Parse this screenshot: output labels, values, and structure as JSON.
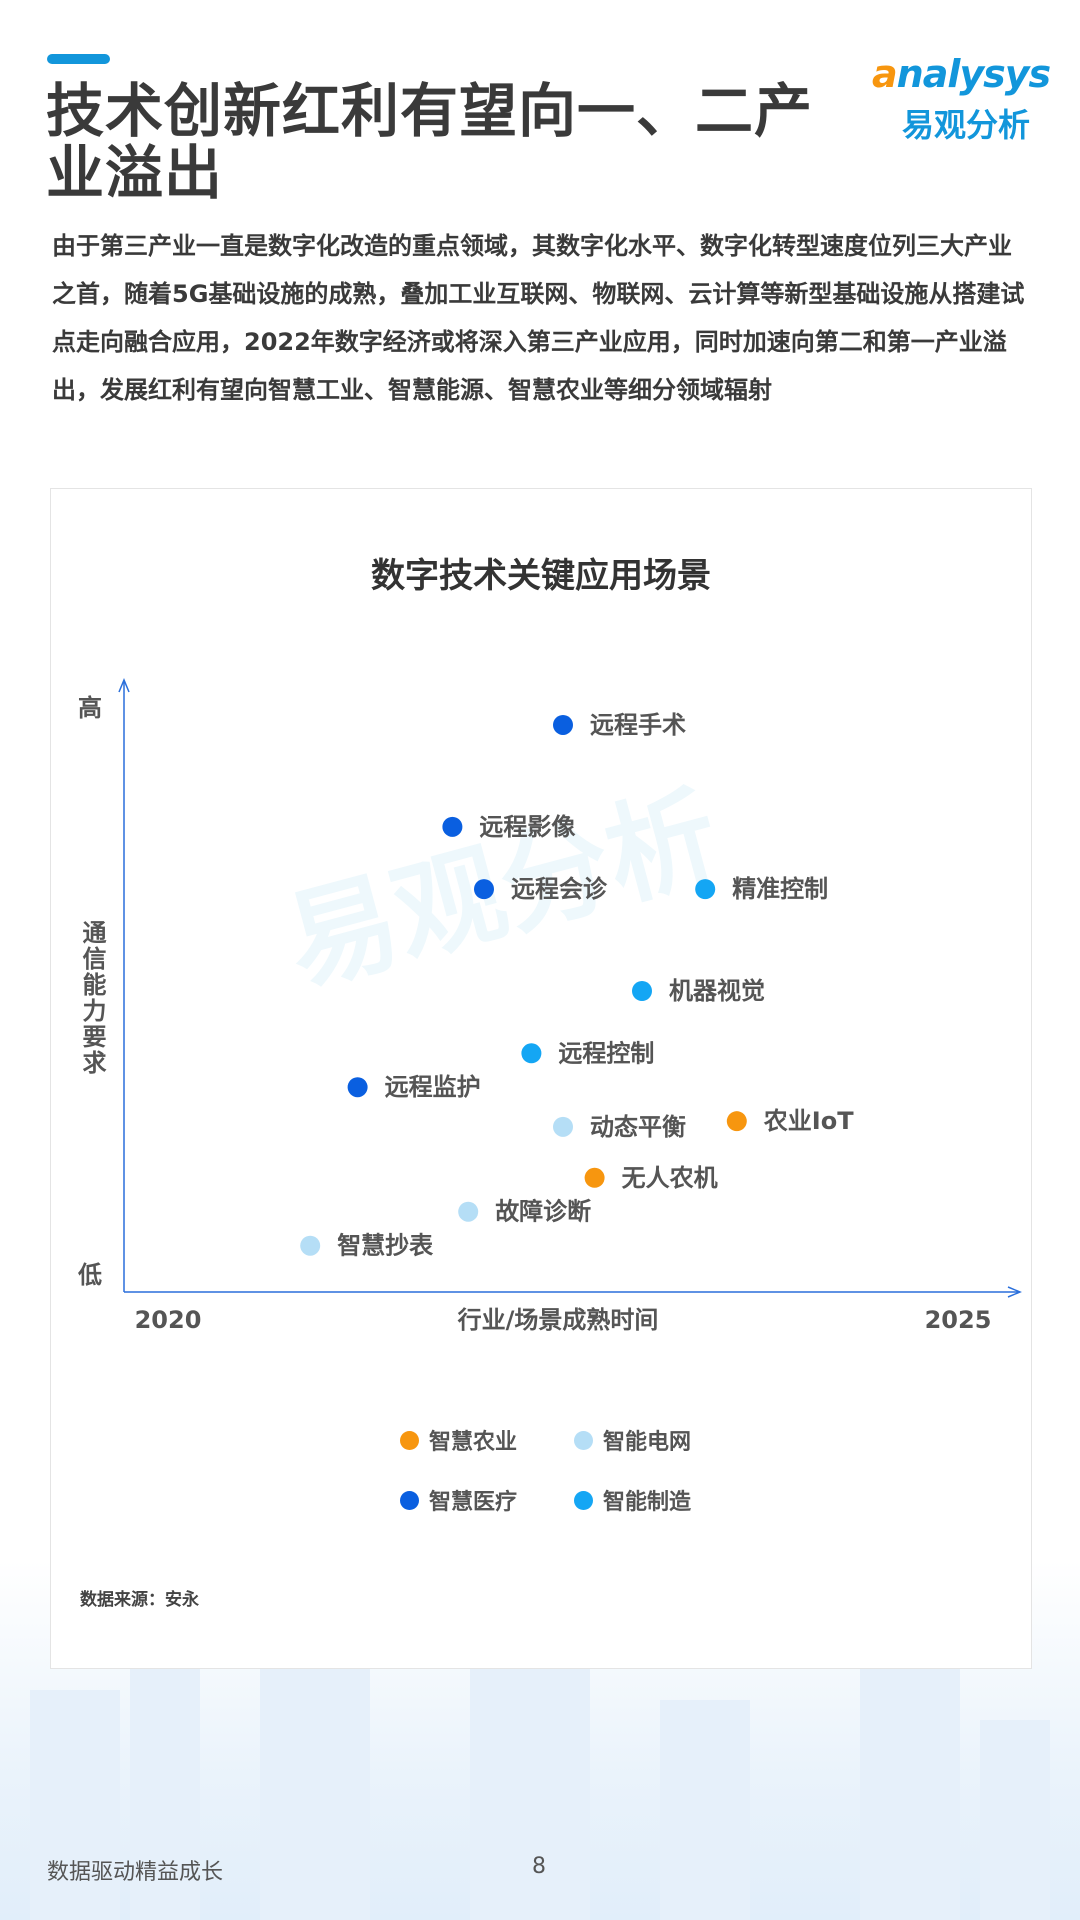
{
  "header": {
    "title": "技术创新红利有望向一、二产业溢出",
    "logo_en": "analysys",
    "logo_cn": "易观分析"
  },
  "body_text": "由于第三产业一直是数字化改造的重点领域，其数字化水平、数字化转型速度位列三大产业之首，随着5G基础设施的成熟，叠加工业互联网、物联网、云计算等新型基础设施从搭建试点走向融合应用，2022年数字经济或将深入第三产业应用，同时加速向第二和第一产业溢出，发展红利有望向智慧工业、智慧能源、智慧农业等细分领域辐射",
  "chart_data": {
    "type": "scatter",
    "title": "数字技术关键应用场景",
    "xlabel": "行业/场景成熟时间",
    "ylabel": "通信能力要求",
    "x_tick_labels": [
      "2020",
      "2025"
    ],
    "y_tick_labels": [
      "低",
      "高"
    ],
    "xlim": [
      2020,
      2025
    ],
    "ylim": [
      0,
      100
    ],
    "grid": false,
    "legend_placement": "bottom",
    "series": [
      {
        "name": "智慧农业",
        "color": "#f7960f",
        "points": [
          {
            "label": "农业IoT",
            "x": 2023.6,
            "y": 27
          },
          {
            "label": "无人农机",
            "x": 2022.7,
            "y": 17
          }
        ]
      },
      {
        "name": "智能电网",
        "color": "#b5def6",
        "points": [
          {
            "label": "动态平衡",
            "x": 2022.5,
            "y": 26
          },
          {
            "label": "故障诊断",
            "x": 2021.9,
            "y": 11
          },
          {
            "label": "智慧抄表",
            "x": 2020.9,
            "y": 5
          }
        ]
      },
      {
        "name": "智慧医疗",
        "color": "#0a5fe0",
        "points": [
          {
            "label": "远程手术",
            "x": 2022.5,
            "y": 97
          },
          {
            "label": "远程影像",
            "x": 2021.8,
            "y": 79
          },
          {
            "label": "远程会诊",
            "x": 2022.0,
            "y": 68
          },
          {
            "label": "远程监护",
            "x": 2021.2,
            "y": 33
          }
        ]
      },
      {
        "name": "智能制造",
        "color": "#14a6f4",
        "points": [
          {
            "label": "精准控制",
            "x": 2023.4,
            "y": 68
          },
          {
            "label": "机器视觉",
            "x": 2023.0,
            "y": 50
          },
          {
            "label": "远程控制",
            "x": 2022.3,
            "y": 39
          }
        ]
      }
    ],
    "axis_color": "#2a6fdb"
  },
  "source": "数据来源：安永",
  "footer": {
    "text": "数据驱动精益成长",
    "page": "8"
  },
  "colors": {
    "accent": "#1296db",
    "title": "#3a3a3a"
  }
}
